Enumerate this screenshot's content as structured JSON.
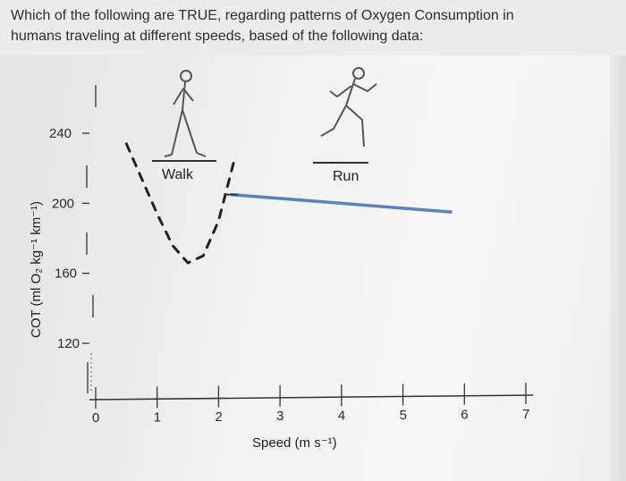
{
  "question": {
    "line1": "Which of the following are TRUE, regarding patterns of Oxygen Consumption in",
    "line2": "humans traveling at different speeds, based of the following data:"
  },
  "chart_data": {
    "type": "line",
    "xlabel": "Speed (m s⁻¹)",
    "ylabel": "COT (ml O₂ kg⁻¹ km⁻¹)",
    "x_ticks": [
      "0",
      "1",
      "2",
      "3",
      "4",
      "5",
      "6",
      "7"
    ],
    "y_ticks": [
      "120",
      "160",
      "200",
      "240"
    ],
    "xlim": [
      0,
      7
    ],
    "ylim": [
      100,
      260
    ],
    "annotations": [
      "Walk",
      "Run"
    ],
    "series": [
      {
        "style": "dashed",
        "color": "#222222",
        "x": [
          0.5,
          0.75,
          1.0,
          1.25,
          1.5,
          1.75,
          2.0,
          2.25
        ],
        "y": [
          236,
          216,
          196,
          178,
          168,
          172,
          192,
          226
        ]
      },
      {
        "style": "solid",
        "color": "#5b82b8",
        "x": [
          2.2,
          5.8
        ],
        "y": [
          207,
          197
        ]
      }
    ]
  }
}
